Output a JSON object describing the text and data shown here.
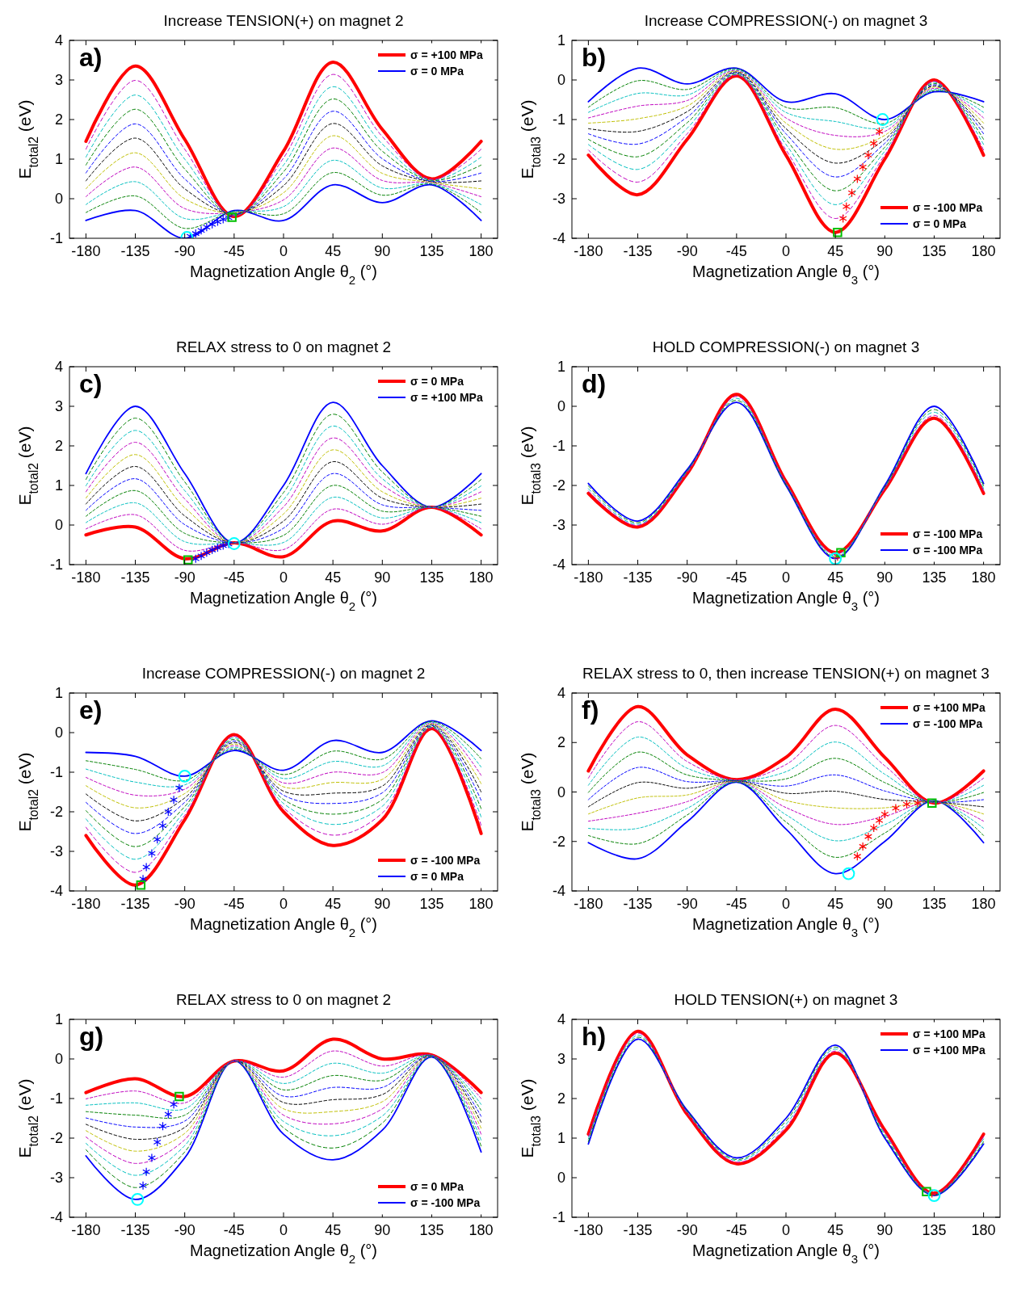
{
  "chart_data": [
    {
      "type": "line",
      "title": "Increase TENSION(+) on magnet 2",
      "xlabel": "Magnetization Angle θ$_{2}$ (°)",
      "ylabel": "E$_{total2}$ (eV)",
      "annotations": [
        "a)"
      ],
      "x": [
        -180,
        -135,
        -90,
        -45,
        0,
        45,
        90,
        135,
        180
      ],
      "xlim": [
        -195,
        195
      ],
      "xticks": [
        -180,
        -135,
        -90,
        -45,
        0,
        45,
        90,
        135,
        180
      ],
      "ylim": [
        -1,
        4
      ],
      "yticks": [
        -1,
        0,
        1,
        2,
        3,
        4
      ],
      "legend": "top right",
      "series": [
        {
          "name": "σ = +100 MPa",
          "color": "#ff0000",
          "values": [
            1.45,
            3.35,
            1.5,
            -0.45,
            1.2,
            3.45,
            1.75,
            0.5,
            1.45
          ]
        },
        {
          "name": "σ = 0 MPa",
          "color": "#0000ff",
          "values": [
            -0.55,
            -0.3,
            -1.0,
            -0.3,
            -0.55,
            0.35,
            -0.1,
            0.35,
            -0.55
          ]
        },
        {
          "color": "#008000",
          "line_style": "dashed",
          "values": [
            -0.35,
            0.07,
            -0.75,
            -0.32,
            -0.38,
            0.66,
            0.09,
            0.37,
            -0.35
          ]
        },
        {
          "color": "#00bfbf",
          "line_style": "dashed",
          "values": [
            -0.15,
            0.43,
            -0.5,
            -0.33,
            -0.2,
            0.97,
            0.27,
            0.38,
            -0.15
          ]
        },
        {
          "color": "#bf00bf",
          "line_style": "dashed",
          "values": [
            0.05,
            0.8,
            -0.25,
            -0.35,
            -0.03,
            1.28,
            0.46,
            0.4,
            0.05
          ]
        },
        {
          "color": "#bfbf00",
          "line_style": "dashed",
          "values": [
            0.25,
            1.16,
            0,
            -0.36,
            0.15,
            1.59,
            0.64,
            0.41,
            0.25
          ]
        },
        {
          "color": "#000000",
          "line_style": "dashed",
          "values": [
            0.45,
            1.53,
            0.25,
            -0.38,
            0.33,
            1.9,
            0.83,
            0.43,
            0.45
          ]
        },
        {
          "color": "#0000ff",
          "line_style": "dashed",
          "values": [
            0.65,
            1.89,
            0.5,
            -0.39,
            0.5,
            2.21,
            1.01,
            0.44,
            0.65
          ]
        },
        {
          "color": "#008000",
          "line_style": "dashed",
          "values": [
            0.85,
            2.26,
            0.75,
            -0.41,
            0.68,
            2.52,
            1.2,
            0.46,
            0.85
          ]
        },
        {
          "color": "#00bfbf",
          "line_style": "dashed",
          "values": [
            1.05,
            2.62,
            1.0,
            -0.42,
            0.85,
            2.83,
            1.38,
            0.47,
            1.05
          ]
        },
        {
          "color": "#bf00bf",
          "line_style": "dashed",
          "values": [
            1.25,
            2.99,
            1.25,
            -0.44,
            1.03,
            3.14,
            1.57,
            0.49,
            1.25
          ]
        },
        {
          "type": "scatter",
          "marker": "cross",
          "color": "#0000ff",
          "x": [
            -85,
            -80,
            -75,
            -70,
            -65,
            -60,
            -55,
            -50
          ],
          "values": [
            -0.95,
            -0.88,
            -0.8,
            -0.72,
            -0.65,
            -0.58,
            -0.52,
            -0.48
          ]
        },
        {
          "type": "scatter",
          "marker": "circle",
          "color": "#00ffff",
          "x": [
            -88
          ],
          "values": [
            -0.98
          ]
        },
        {
          "type": "scatter",
          "marker": "square",
          "color": "#00c000",
          "x": [
            -47
          ],
          "values": [
            -0.47
          ]
        }
      ]
    },
    {
      "type": "line",
      "title": "Increase COMPRESSION(-) on magnet 3",
      "xlabel": "Magnetization Angle θ$_{3}$ (°)",
      "ylabel": "E$_{total3}$ (eV)",
      "annotations": [
        "b)"
      ],
      "x": [
        -180,
        -135,
        -90,
        -45,
        0,
        45,
        90,
        135,
        180
      ],
      "xlim": [
        -195,
        195
      ],
      "xticks": [
        -180,
        -135,
        -90,
        -45,
        0,
        45,
        90,
        135,
        180
      ],
      "ylim": [
        -4,
        1
      ],
      "yticks": [
        -4,
        -3,
        -2,
        -1,
        0,
        1
      ],
      "legend": "bottom right",
      "series": [
        {
          "name": "σ = -100 MPa",
          "color": "#ff0000",
          "values": [
            -1.9,
            -2.9,
            -1.5,
            0.1,
            -1.9,
            -3.85,
            -2.0,
            0.0,
            -1.9
          ]
        },
        {
          "name": "σ = 0 MPa",
          "color": "#0000ff",
          "values": [
            -0.55,
            0.3,
            -0.1,
            0.3,
            -0.55,
            -0.35,
            -1.0,
            -0.3,
            -0.55
          ]
        },
        {
          "color": "#008000",
          "line_style": "dashed",
          "values": [
            -0.69,
            -0.02,
            -0.24,
            0.28,
            -0.69,
            -0.7,
            -1.1,
            -0.27,
            -0.69
          ]
        },
        {
          "color": "#00bfbf",
          "line_style": "dashed",
          "values": [
            -0.82,
            -0.34,
            -0.38,
            0.26,
            -0.82,
            -1.05,
            -1.2,
            -0.24,
            -0.82
          ]
        },
        {
          "color": "#bf00bf",
          "line_style": "dashed",
          "values": [
            -0.96,
            -0.66,
            -0.52,
            0.24,
            -0.96,
            -1.4,
            -1.3,
            -0.21,
            -0.96
          ]
        },
        {
          "color": "#bfbf00",
          "line_style": "dashed",
          "values": [
            -1.09,
            -0.98,
            -0.66,
            0.22,
            -1.09,
            -1.75,
            -1.4,
            -0.18,
            -1.09
          ]
        },
        {
          "color": "#000000",
          "line_style": "dashed",
          "values": [
            -1.23,
            -1.3,
            -0.8,
            0.2,
            -1.23,
            -2.1,
            -1.5,
            -0.15,
            -1.23
          ]
        },
        {
          "color": "#0000ff",
          "line_style": "dashed",
          "values": [
            -1.36,
            -1.62,
            -0.94,
            0.18,
            -1.36,
            -2.45,
            -1.6,
            -0.12,
            -1.36
          ]
        },
        {
          "color": "#008000",
          "line_style": "dashed",
          "values": [
            -1.5,
            -1.94,
            -1.08,
            0.16,
            -1.5,
            -2.8,
            -1.7,
            -0.09,
            -1.5
          ]
        },
        {
          "color": "#00bfbf",
          "line_style": "dashed",
          "values": [
            -1.63,
            -2.26,
            -1.22,
            0.14,
            -1.63,
            -3.15,
            -1.8,
            -0.06,
            -1.63
          ]
        },
        {
          "color": "#bf00bf",
          "line_style": "dashed",
          "values": [
            -1.77,
            -2.58,
            -1.36,
            0.12,
            -1.77,
            -3.5,
            -1.9,
            -0.03,
            -1.77
          ]
        },
        {
          "type": "scatter",
          "marker": "cross",
          "color": "#ff0000",
          "x": [
            85,
            80,
            75,
            70,
            65,
            60,
            55,
            52
          ],
          "values": [
            -1.3,
            -1.6,
            -1.9,
            -2.2,
            -2.5,
            -2.85,
            -3.2,
            -3.5
          ]
        },
        {
          "type": "scatter",
          "marker": "circle",
          "color": "#00ffff",
          "x": [
            88
          ],
          "values": [
            -1.0
          ]
        },
        {
          "type": "scatter",
          "marker": "square",
          "color": "#00c000",
          "x": [
            47
          ],
          "values": [
            -3.85
          ]
        }
      ]
    },
    {
      "type": "line",
      "title": "RELAX stress to 0 on magnet 2",
      "xlabel": "Magnetization Angle θ$_{2}$ (°)",
      "ylabel": "E$_{total2}$ (eV)",
      "annotations": [
        "c)"
      ],
      "x": [
        -180,
        -135,
        -90,
        -45,
        0,
        45,
        90,
        135,
        180
      ],
      "xlim": [
        -195,
        195
      ],
      "xticks": [
        -180,
        -135,
        -90,
        -45,
        0,
        45,
        90,
        135,
        180
      ],
      "ylim": [
        -1,
        4
      ],
      "yticks": [
        -1,
        0,
        1,
        2,
        3,
        4
      ],
      "legend": "top right",
      "series": [
        {
          "name": "σ = 0 MPa",
          "color": "#ff0000",
          "values": [
            -0.25,
            -0.05,
            -0.85,
            -0.45,
            -0.8,
            0.1,
            -0.15,
            0.45,
            -0.25
          ]
        },
        {
          "name": "σ = +100 MPa",
          "color": "#0000ff",
          "values": [
            1.3,
            3.0,
            1.3,
            -0.45,
            1.0,
            3.1,
            1.5,
            0.45,
            1.3
          ]
        },
        {
          "color": "#008000",
          "line_style": "dashed",
          "values": [
            1.15,
            2.7,
            1.09,
            -0.45,
            0.82,
            2.8,
            1.34,
            0.45,
            1.15
          ]
        },
        {
          "color": "#00bfbf",
          "line_style": "dashed",
          "values": [
            0.99,
            2.39,
            0.87,
            -0.45,
            0.64,
            2.5,
            1.17,
            0.45,
            0.99
          ]
        },
        {
          "color": "#bf00bf",
          "line_style": "dashed",
          "values": [
            0.84,
            2.09,
            0.66,
            -0.45,
            0.46,
            2.2,
            1.01,
            0.45,
            0.84
          ]
        },
        {
          "color": "#bfbf00",
          "line_style": "dashed",
          "values": [
            0.68,
            1.78,
            0.44,
            -0.45,
            0.28,
            1.9,
            0.84,
            0.45,
            0.68
          ]
        },
        {
          "color": "#000000",
          "line_style": "dashed",
          "values": [
            0.53,
            1.48,
            0.23,
            -0.45,
            0.1,
            1.6,
            0.68,
            0.45,
            0.53
          ]
        },
        {
          "color": "#0000ff",
          "line_style": "dashed",
          "values": [
            0.37,
            1.17,
            0.01,
            -0.45,
            -0.08,
            1.3,
            0.51,
            0.45,
            0.37
          ]
        },
        {
          "color": "#008000",
          "line_style": "dashed",
          "values": [
            0.22,
            0.87,
            -0.21,
            -0.45,
            -0.26,
            1.0,
            0.35,
            0.45,
            0.22
          ]
        },
        {
          "color": "#00bfbf",
          "line_style": "dashed",
          "values": [
            0.06,
            0.56,
            -0.42,
            -0.45,
            -0.44,
            0.7,
            0.18,
            0.45,
            0.06
          ]
        },
        {
          "color": "#bf00bf",
          "line_style": "dashed",
          "values": [
            -0.1,
            0.26,
            -0.64,
            -0.45,
            -0.62,
            0.4,
            0.02,
            0.45,
            -0.1
          ]
        },
        {
          "type": "scatter",
          "marker": "cross",
          "color": "#0000ff",
          "x": [
            -80,
            -75,
            -70,
            -65,
            -60,
            -55,
            -50
          ],
          "values": [
            -0.85,
            -0.78,
            -0.7,
            -0.63,
            -0.57,
            -0.52,
            -0.48
          ]
        },
        {
          "type": "scatter",
          "marker": "circle",
          "color": "#00ffff",
          "x": [
            -45
          ],
          "values": [
            -0.47
          ]
        },
        {
          "type": "scatter",
          "marker": "square",
          "color": "#00c000",
          "x": [
            -87
          ],
          "values": [
            -0.88
          ]
        }
      ]
    },
    {
      "type": "line",
      "title": "HOLD COMPRESSION(-) on magnet 3",
      "xlabel": "Magnetization Angle θ$_{3}$ (°)",
      "ylabel": "E$_{total3}$ (eV)",
      "annotations": [
        "d)"
      ],
      "x": [
        -180,
        -135,
        -90,
        -45,
        0,
        45,
        90,
        135,
        180
      ],
      "xlim": [
        -195,
        195
      ],
      "xticks": [
        -180,
        -135,
        -90,
        -45,
        0,
        45,
        90,
        135,
        180
      ],
      "ylim": [
        -4,
        1
      ],
      "yticks": [
        -4,
        -3,
        -2,
        -1,
        0,
        1
      ],
      "legend": "bottom right",
      "series": [
        {
          "name": "σ = -100 MPa",
          "color": "#ff0000",
          "values": [
            -2.2,
            -3.05,
            -1.7,
            0.3,
            -1.9,
            -3.7,
            -2.1,
            -0.3,
            -2.2
          ]
        },
        {
          "name": "σ = -100 MPa",
          "color": "#0000ff",
          "values": [
            -1.95,
            -2.9,
            -1.6,
            0.1,
            -2.0,
            -3.85,
            -2.0,
            0.0,
            -1.95
          ]
        },
        {
          "color": "#008000",
          "line_style": "dashed",
          "values": [
            -2.01,
            -2.94,
            -1.63,
            0.15,
            -1.98,
            -3.81,
            -2.03,
            -0.08,
            -2.01
          ]
        },
        {
          "color": "#00bfbf",
          "line_style": "dashed",
          "values": [
            -2.08,
            -2.98,
            -1.65,
            0.2,
            -1.95,
            -3.78,
            -2.05,
            -0.15,
            -2.08
          ]
        },
        {
          "color": "#bf00bf",
          "line_style": "dashed",
          "values": [
            -2.14,
            -3.01,
            -1.68,
            0.25,
            -1.93,
            -3.74,
            -2.08,
            -0.23,
            -2.14
          ]
        },
        {
          "type": "scatter",
          "marker": "cross",
          "color": "#ff0000",
          "x": [
            47
          ],
          "values": [
            -3.8
          ]
        },
        {
          "type": "scatter",
          "marker": "circle",
          "color": "#00ffff",
          "x": [
            45
          ],
          "values": [
            -3.85
          ]
        },
        {
          "type": "scatter",
          "marker": "square",
          "color": "#00c000",
          "x": [
            50
          ],
          "values": [
            -3.7
          ]
        }
      ]
    },
    {
      "type": "line",
      "title": "Increase COMPRESSION(-) on magnet 2",
      "xlabel": "Magnetization Angle θ$_{2}$ (°)",
      "ylabel": "E$_{total2}$ (eV)",
      "annotations": [
        "e)"
      ],
      "x": [
        -180,
        -135,
        -90,
        -45,
        0,
        45,
        90,
        135,
        180
      ],
      "xlim": [
        -195,
        195
      ],
      "xticks": [
        -180,
        -135,
        -90,
        -45,
        0,
        45,
        90,
        135,
        180
      ],
      "ylim": [
        -4,
        1
      ],
      "yticks": [
        -4,
        -3,
        -2,
        -1,
        0,
        1
      ],
      "legend": "bottom right",
      "series": [
        {
          "name": "σ = -100 MPa",
          "color": "#ff0000",
          "values": [
            -2.6,
            -3.85,
            -2.2,
            -0.05,
            -2.0,
            -2.85,
            -2.2,
            0.1,
            -2.55
          ]
        },
        {
          "name": "σ = 0 MPa",
          "color": "#0000ff",
          "values": [
            -0.5,
            -0.6,
            -1.1,
            -0.45,
            -0.95,
            -0.2,
            -0.5,
            0.3,
            -0.45
          ]
        },
        {
          "color": "#008000",
          "line_style": "dashed",
          "values": [
            -0.71,
            -0.93,
            -1.21,
            -0.41,
            -1.06,
            -0.47,
            -0.67,
            0.28,
            -0.66
          ]
        },
        {
          "color": "#00bfbf",
          "line_style": "dashed",
          "values": [
            -0.92,
            -1.25,
            -1.32,
            -0.37,
            -1.16,
            -0.73,
            -0.84,
            0.26,
            -0.87
          ]
        },
        {
          "color": "#bf00bf",
          "line_style": "dashed",
          "values": [
            -1.13,
            -1.58,
            -1.43,
            -0.33,
            -1.27,
            -1.0,
            -1.01,
            0.24,
            -1.08
          ]
        },
        {
          "color": "#bfbf00",
          "line_style": "dashed",
          "values": [
            -1.34,
            -1.9,
            -1.54,
            -0.29,
            -1.37,
            -1.26,
            -1.18,
            0.22,
            -1.29
          ]
        },
        {
          "color": "#000000",
          "line_style": "dashed",
          "values": [
            -1.55,
            -2.23,
            -1.65,
            -0.25,
            -1.48,
            -1.53,
            -1.35,
            0.2,
            -1.5
          ]
        },
        {
          "color": "#0000ff",
          "line_style": "dashed",
          "values": [
            -1.76,
            -2.55,
            -1.76,
            -0.21,
            -1.58,
            -1.79,
            -1.52,
            0.18,
            -1.71
          ]
        },
        {
          "color": "#008000",
          "line_style": "dashed",
          "values": [
            -1.97,
            -2.88,
            -1.87,
            -0.17,
            -1.69,
            -2.06,
            -1.69,
            0.16,
            -1.92
          ]
        },
        {
          "color": "#00bfbf",
          "line_style": "dashed",
          "values": [
            -2.18,
            -3.2,
            -1.98,
            -0.13,
            -1.79,
            -2.32,
            -1.86,
            0.14,
            -2.13
          ]
        },
        {
          "color": "#bf00bf",
          "line_style": "dashed",
          "values": [
            -2.39,
            -3.53,
            -2.09,
            -0.09,
            -1.9,
            -2.59,
            -2.03,
            0.12,
            -2.34
          ]
        },
        {
          "type": "scatter",
          "marker": "cross",
          "color": "#0000ff",
          "x": [
            -95,
            -100,
            -105,
            -110,
            -115,
            -120,
            -125,
            -128
          ],
          "values": [
            -1.4,
            -1.7,
            -2.0,
            -2.35,
            -2.7,
            -3.05,
            -3.4,
            -3.7
          ]
        },
        {
          "type": "scatter",
          "marker": "circle",
          "color": "#00ffff",
          "x": [
            -90
          ],
          "values": [
            -1.1
          ]
        },
        {
          "type": "scatter",
          "marker": "square",
          "color": "#00c000",
          "x": [
            -130
          ],
          "values": [
            -3.85
          ]
        }
      ]
    },
    {
      "type": "line",
      "title": "RELAX stress to 0, then increase TENSION(+) on magnet 3",
      "xlabel": "Magnetization Angle θ$_{3}$ (°)",
      "ylabel": "E$_{total3}$ (eV)",
      "annotations": [
        "f)"
      ],
      "x": [
        -180,
        -135,
        -90,
        -45,
        0,
        45,
        90,
        135,
        180
      ],
      "xlim": [
        -195,
        195
      ],
      "xticks": [
        -180,
        -135,
        -90,
        -45,
        0,
        45,
        90,
        135,
        180
      ],
      "ylim": [
        -4,
        4
      ],
      "yticks": [
        -4,
        -2,
        0,
        2,
        4
      ],
      "legend": "top right",
      "series": [
        {
          "name": "σ = +100 MPa",
          "color": "#ff0000",
          "values": [
            0.85,
            3.45,
            1.5,
            0.5,
            1.4,
            3.35,
            1.4,
            -0.45,
            0.85
          ]
        },
        {
          "name": "σ = -100 MPa",
          "color": "#0000ff",
          "values": [
            -2.05,
            -2.7,
            -1.2,
            0.4,
            -1.5,
            -3.3,
            -2.0,
            -0.35,
            -2.05
          ]
        },
        {
          "color": "#008000",
          "line_style": "dashed",
          "values": [
            -1.76,
            -2.09,
            -0.93,
            0.41,
            -1.21,
            -2.64,
            -1.66,
            -0.36,
            -1.76
          ]
        },
        {
          "color": "#00bfbf",
          "line_style": "dashed",
          "values": [
            -1.47,
            -1.47,
            -0.66,
            0.42,
            -0.92,
            -1.97,
            -1.32,
            -0.37,
            -1.47
          ]
        },
        {
          "color": "#bf00bf",
          "line_style": "dashed",
          "values": [
            -1.18,
            -0.86,
            -0.39,
            0.43,
            -0.63,
            -1.31,
            -0.98,
            -0.38,
            -1.18
          ]
        },
        {
          "color": "#bfbf00",
          "line_style": "dashed",
          "values": [
            -0.89,
            -0.24,
            -0.12,
            0.44,
            -0.34,
            -0.64,
            -0.64,
            -0.39,
            -0.89
          ]
        },
        {
          "color": "#000000",
          "line_style": "dashed",
          "values": [
            -0.6,
            0.38,
            0.15,
            0.45,
            -0.05,
            0.03,
            -0.3,
            -0.4,
            -0.6
          ]
        },
        {
          "color": "#0000ff",
          "line_style": "dashed",
          "values": [
            -0.31,
            0.99,
            0.42,
            0.46,
            0.24,
            0.69,
            0.04,
            -0.41,
            -0.31
          ]
        },
        {
          "color": "#008000",
          "line_style": "dashed",
          "values": [
            -0.02,
            1.61,
            0.69,
            0.47,
            0.53,
            1.36,
            0.38,
            -0.42,
            -0.02
          ]
        },
        {
          "color": "#00bfbf",
          "line_style": "dashed",
          "values": [
            0.27,
            2.22,
            0.96,
            0.48,
            0.82,
            2.02,
            0.72,
            -0.43,
            0.27
          ]
        },
        {
          "color": "#bf00bf",
          "line_style": "dashed",
          "values": [
            0.56,
            2.84,
            1.23,
            0.49,
            1.11,
            2.69,
            1.06,
            -0.44,
            0.56
          ]
        },
        {
          "type": "scatter",
          "marker": "cross",
          "color": "#ff0000",
          "x": [
            65,
            70,
            75,
            80,
            85,
            90,
            100,
            110,
            120
          ],
          "values": [
            -2.6,
            -2.2,
            -1.8,
            -1.45,
            -1.15,
            -0.9,
            -0.65,
            -0.5,
            -0.45
          ]
        },
        {
          "type": "scatter",
          "marker": "circle",
          "color": "#00ffff",
          "x": [
            57
          ],
          "values": [
            -3.3
          ]
        },
        {
          "type": "scatter",
          "marker": "square",
          "color": "#00c000",
          "x": [
            133
          ],
          "values": [
            -0.45
          ]
        }
      ]
    },
    {
      "type": "line",
      "title": "RELAX stress to 0 on magnet 2",
      "xlabel": "Magnetization Angle θ$_{2}$ (°)",
      "ylabel": "E$_{total2}$ (eV)",
      "annotations": [
        "g)"
      ],
      "x": [
        -180,
        -135,
        -90,
        -45,
        0,
        45,
        90,
        135,
        180
      ],
      "xlim": [
        -195,
        195
      ],
      "xticks": [
        -180,
        -135,
        -90,
        -45,
        0,
        45,
        90,
        135,
        180
      ],
      "ylim": [
        -4,
        1
      ],
      "yticks": [
        -4,
        -3,
        -2,
        -1,
        0,
        1
      ],
      "legend": "bottom right",
      "series": [
        {
          "name": "σ = 0 MPa",
          "color": "#ff0000",
          "values": [
            -0.85,
            -0.5,
            -0.95,
            -0.05,
            -0.3,
            0.5,
            0.0,
            0.1,
            -0.85
          ]
        },
        {
          "name": "σ = -100 MPa",
          "color": "#0000ff",
          "values": [
            -2.45,
            -3.55,
            -2.5,
            -0.05,
            -1.9,
            -2.55,
            -1.8,
            0.05,
            -2.35
          ]
        },
        {
          "color": "#008000",
          "line_style": "dashed",
          "values": [
            -2.29,
            -3.25,
            -2.35,
            -0.05,
            -1.74,
            -2.25,
            -1.62,
            0.06,
            -2.2
          ]
        },
        {
          "color": "#00bfbf",
          "line_style": "dashed",
          "values": [
            -2.13,
            -2.94,
            -2.19,
            -0.05,
            -1.58,
            -1.94,
            -1.44,
            0.06,
            -2.05
          ]
        },
        {
          "color": "#bf00bf",
          "line_style": "dashed",
          "values": [
            -1.97,
            -2.64,
            -2.04,
            -0.05,
            -1.42,
            -1.64,
            -1.26,
            0.07,
            -1.9
          ]
        },
        {
          "color": "#bfbf00",
          "line_style": "dashed",
          "values": [
            -1.81,
            -2.33,
            -1.88,
            -0.05,
            -1.26,
            -1.33,
            -1.08,
            0.07,
            -1.75
          ]
        },
        {
          "color": "#000000",
          "line_style": "dashed",
          "values": [
            -1.65,
            -2.03,
            -1.73,
            -0.05,
            -1.1,
            -1.03,
            -0.9,
            0.08,
            -1.6
          ]
        },
        {
          "color": "#0000ff",
          "line_style": "dashed",
          "values": [
            -1.49,
            -1.72,
            -1.57,
            -0.05,
            -0.94,
            -0.72,
            -0.72,
            0.08,
            -1.45
          ]
        },
        {
          "color": "#008000",
          "line_style": "dashed",
          "values": [
            -1.33,
            -1.42,
            -1.42,
            -0.05,
            -0.78,
            -0.42,
            -0.54,
            0.09,
            -1.3
          ]
        },
        {
          "color": "#00bfbf",
          "line_style": "dashed",
          "values": [
            -1.17,
            -1.11,
            -1.26,
            -0.05,
            -0.62,
            -0.11,
            -0.36,
            0.09,
            -1.15
          ]
        },
        {
          "color": "#bf00bf",
          "line_style": "dashed",
          "values": [
            -1.01,
            -0.81,
            -1.11,
            -0.05,
            -0.46,
            0.2,
            -0.18,
            0.1,
            -1.0
          ]
        },
        {
          "type": "scatter",
          "marker": "cross",
          "color": "#0000ff",
          "x": [
            -100,
            -105,
            -110,
            -115,
            -120,
            -125,
            -128
          ],
          "values": [
            -1.15,
            -1.4,
            -1.7,
            -2.1,
            -2.5,
            -2.85,
            -3.2
          ]
        },
        {
          "type": "scatter",
          "marker": "circle",
          "color": "#00ffff",
          "x": [
            -133
          ],
          "values": [
            -3.55
          ]
        },
        {
          "type": "scatter",
          "marker": "square",
          "color": "#00c000",
          "x": [
            -95
          ],
          "values": [
            -0.95
          ]
        }
      ]
    },
    {
      "type": "line",
      "title": "HOLD TENSION(+) on magnet 3",
      "xlabel": "Magnetization Angle θ$_{3}$ (°)",
      "ylabel": "E$_{total3}$ (eV)",
      "annotations": [
        "h)"
      ],
      "x": [
        -180,
        -135,
        -90,
        -45,
        0,
        45,
        90,
        135,
        180
      ],
      "xlim": [
        -195,
        195
      ],
      "xticks": [
        -180,
        -135,
        -90,
        -45,
        0,
        45,
        90,
        135,
        180
      ],
      "ylim": [
        -1,
        4
      ],
      "yticks": [
        -1,
        0,
        1,
        2,
        3,
        4
      ],
      "legend": "top right",
      "series": [
        {
          "name": "σ = +100 MPa",
          "color": "#ff0000",
          "values": [
            1.1,
            3.7,
            1.6,
            0.35,
            1.2,
            3.15,
            1.2,
            -0.4,
            1.1
          ]
        },
        {
          "name": "σ = +100 MPa",
          "color": "#0000ff",
          "values": [
            0.85,
            3.5,
            1.7,
            0.5,
            1.5,
            3.35,
            1.0,
            -0.45,
            0.85
          ]
        },
        {
          "color": "#008000",
          "line_style": "dashed",
          "values": [
            0.91,
            3.55,
            1.68,
            0.46,
            1.43,
            3.3,
            1.05,
            -0.44,
            0.91
          ]
        },
        {
          "color": "#00bfbf",
          "line_style": "dashed",
          "values": [
            0.98,
            3.6,
            1.65,
            0.43,
            1.35,
            3.25,
            1.1,
            -0.43,
            0.98
          ]
        },
        {
          "color": "#bf00bf",
          "line_style": "dashed",
          "values": [
            1.04,
            3.65,
            1.63,
            0.39,
            1.28,
            3.2,
            1.15,
            -0.41,
            1.04
          ]
        },
        {
          "type": "scatter",
          "marker": "cross",
          "color": "#ff0000",
          "x": [
            133
          ],
          "values": [
            -0.4
          ]
        },
        {
          "type": "scatter",
          "marker": "circle",
          "color": "#00ffff",
          "x": [
            135
          ],
          "values": [
            -0.45
          ]
        },
        {
          "type": "scatter",
          "marker": "square",
          "color": "#00c000",
          "x": [
            128
          ],
          "values": [
            -0.35
          ]
        }
      ]
    }
  ]
}
